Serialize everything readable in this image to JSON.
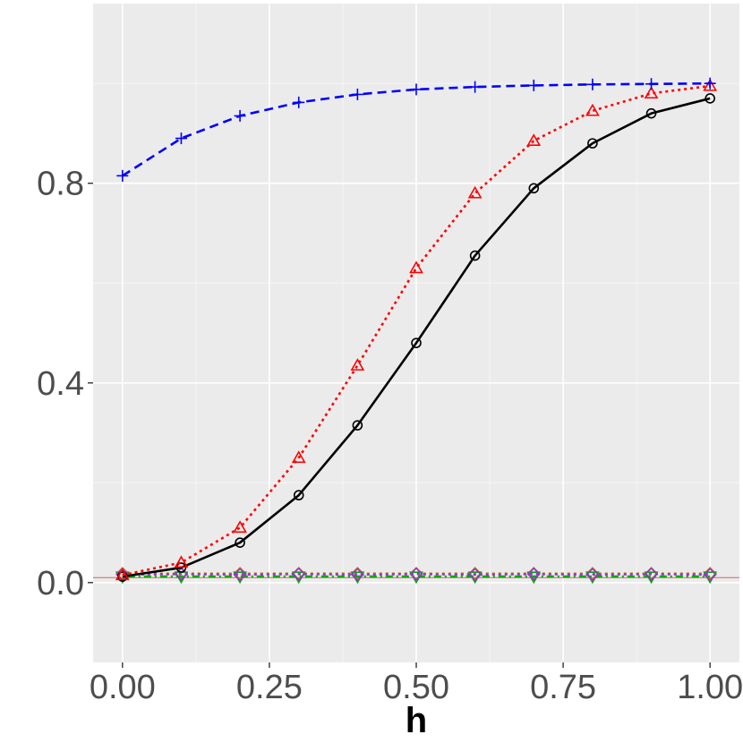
{
  "chart_data": {
    "type": "line",
    "xlabel": "h",
    "ylabel": "",
    "xlim": [
      -0.05,
      1.05
    ],
    "ylim": [
      -0.16,
      1.16
    ],
    "x_ticks": [
      0.0,
      0.25,
      0.5,
      0.75,
      1.0
    ],
    "x_tick_labels": [
      "0.00",
      "0.25",
      "0.50",
      "0.75",
      "1.00"
    ],
    "y_ticks": [
      0.0,
      0.4,
      0.8
    ],
    "y_tick_labels": [
      "0.0",
      "0.4",
      "0.8"
    ],
    "grid": true,
    "reference_line": {
      "y": 0.01,
      "color": "#cc6666"
    },
    "x": [
      0.0,
      0.1,
      0.2,
      0.3,
      0.4,
      0.5,
      0.6,
      0.7,
      0.8,
      0.9,
      1.0
    ],
    "series": [
      {
        "color": "#0000ff",
        "dash": "dashed",
        "marker": "plus",
        "values": [
          0.815,
          0.89,
          0.935,
          0.962,
          0.978,
          0.988,
          0.993,
          0.996,
          0.998,
          0.999,
          1.0
        ]
      },
      {
        "color": "#ff0000",
        "dash": "dotted",
        "marker": "triangle",
        "values": [
          0.015,
          0.04,
          0.11,
          0.25,
          0.435,
          0.63,
          0.78,
          0.885,
          0.945,
          0.98,
          0.995
        ]
      },
      {
        "color": "#000000",
        "dash": "solid",
        "marker": "circle",
        "values": [
          0.012,
          0.03,
          0.08,
          0.175,
          0.315,
          0.48,
          0.655,
          0.79,
          0.88,
          0.94,
          0.97
        ]
      },
      {
        "color": "#9933cc",
        "dash": "dotted",
        "marker": "diamond",
        "values": [
          0.016,
          0.017,
          0.016,
          0.017,
          0.016,
          0.017,
          0.016,
          0.017,
          0.016,
          0.017,
          0.016
        ]
      },
      {
        "color": "#00aa00",
        "dash": "dotdash",
        "marker": "down-triangle",
        "values": [
          0.012,
          0.012,
          0.012,
          0.012,
          0.012,
          0.012,
          0.012,
          0.012,
          0.012,
          0.012,
          0.012
        ]
      },
      {
        "color": "#b8860b",
        "dash": "dotted",
        "marker": "diamond",
        "values": [
          0.018,
          0.018,
          0.018,
          0.018,
          0.018,
          0.018,
          0.018,
          0.018,
          0.018,
          0.018,
          0.018
        ]
      }
    ]
  }
}
